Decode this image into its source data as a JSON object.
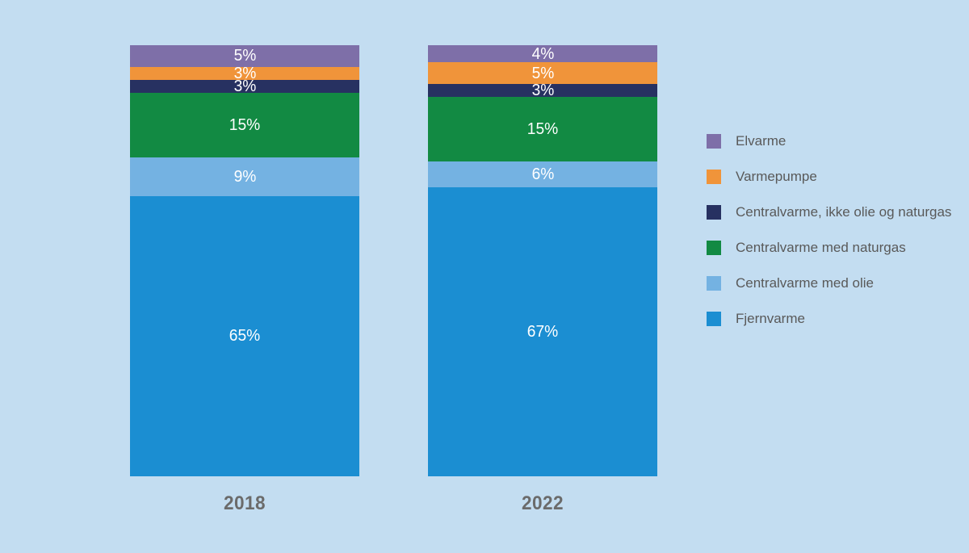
{
  "chart_data": {
    "type": "bar",
    "subtype": "stacked-100-percent-column",
    "title": "",
    "xlabel": "",
    "ylabel": "",
    "ylim": [
      0,
      100
    ],
    "grid": false,
    "legend_position": "right",
    "background_color": "#c3ddf1",
    "categories": [
      "2018",
      "2022"
    ],
    "value_suffix": "%",
    "series": [
      {
        "name": "Elvarme",
        "color": "#7e6fa8",
        "values": [
          5,
          4
        ]
      },
      {
        "name": "Varmepumpe",
        "color": "#f0943a",
        "values": [
          3,
          5
        ]
      },
      {
        "name": "Centralvarme, ikke olie og naturgas",
        "color": "#273161",
        "values": [
          3,
          3
        ]
      },
      {
        "name": "Centralvarme med naturgas",
        "color": "#128a43",
        "values": [
          15,
          15
        ]
      },
      {
        "name": "Centralvarme med olie",
        "color": "#74b2e2",
        "values": [
          9,
          6
        ]
      },
      {
        "name": "Fjernvarme",
        "color": "#1b8ed2",
        "values": [
          65,
          67
        ]
      }
    ],
    "data_labels": {
      "2018": [
        "5%",
        "3%",
        "3%",
        "15%",
        "9%",
        "65%"
      ],
      "2022": [
        "4%",
        "5%",
        "3%",
        "15%",
        "6%",
        "67%"
      ]
    },
    "label_color": "#ffffff",
    "axis_label_color": "#6b6b6b",
    "legend_text_color": "#595959"
  }
}
